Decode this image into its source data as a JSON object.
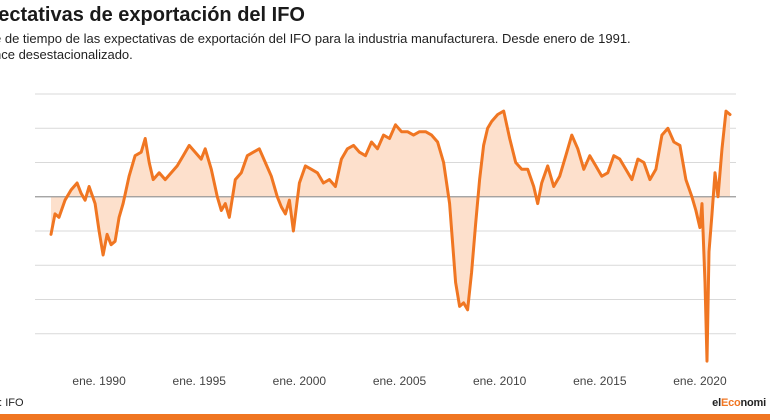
{
  "header": {
    "title": "pectativas de exportación del IFO",
    "subtitle_line1": "e de tiempo de las expectativas de exportación del IFO para la industria manufacturera. Desde enero de 1991.",
    "subtitle_line2": "nce desestacionalizado."
  },
  "footer": {
    "source": "e: IFO",
    "logo_part1": "el",
    "logo_part2": "Eco",
    "logo_part3": "nomi"
  },
  "colors": {
    "line": "#f07622",
    "fill": "#fde0cc",
    "grid": "#d9d9d9",
    "baseline": "#999999",
    "bar": "#f07622"
  },
  "chart_data": {
    "type": "area",
    "title": "pectativas de exportación del IFO",
    "xlabel": "",
    "ylabel": "",
    "xlim": [
      1986.8,
      2021.8
    ],
    "ylim": [
      -50,
      30
    ],
    "baseline": 0,
    "grid": true,
    "x_ticks": [
      1990,
      1995,
      2000,
      2005,
      2010,
      2015,
      2020
    ],
    "x_tick_labels": [
      "ene. 1990",
      "ene. 1995",
      "ene. 2000",
      "ene. 2005",
      "ene. 2010",
      "ene. 2015",
      "ene. 2020"
    ],
    "y_tick_labels": [],
    "series": [
      {
        "name": "Expectativas de exportación",
        "x": [
          1987.6,
          1987.8,
          1988.0,
          1988.3,
          1988.6,
          1988.9,
          1989.1,
          1989.3,
          1989.5,
          1989.8,
          1990.0,
          1990.2,
          1990.4,
          1990.6,
          1990.8,
          1991.0,
          1991.2,
          1991.5,
          1991.8,
          1992.1,
          1992.3,
          1992.5,
          1992.7,
          1993.0,
          1993.3,
          1993.6,
          1993.9,
          1994.2,
          1994.5,
          1994.8,
          1995.1,
          1995.3,
          1995.6,
          1995.9,
          1996.1,
          1996.3,
          1996.5,
          1996.8,
          1997.1,
          1997.4,
          1997.7,
          1998.0,
          1998.3,
          1998.6,
          1998.9,
          1999.1,
          1999.3,
          1999.5,
          1999.7,
          2000.0,
          2000.3,
          2000.6,
          2000.9,
          2001.2,
          2001.5,
          2001.8,
          2002.1,
          2002.4,
          2002.7,
          2003.0,
          2003.3,
          2003.6,
          2003.9,
          2004.2,
          2004.5,
          2004.8,
          2005.1,
          2005.4,
          2005.7,
          2006.0,
          2006.3,
          2006.6,
          2006.9,
          2007.2,
          2007.5,
          2007.8,
          2008.0,
          2008.2,
          2008.4,
          2008.6,
          2008.8,
          2009.0,
          2009.2,
          2009.4,
          2009.6,
          2009.9,
          2010.2,
          2010.5,
          2010.8,
          2011.1,
          2011.4,
          2011.7,
          2011.9,
          2012.1,
          2012.4,
          2012.7,
          2013.0,
          2013.3,
          2013.6,
          2013.9,
          2014.2,
          2014.5,
          2014.8,
          2015.1,
          2015.4,
          2015.7,
          2016.0,
          2016.3,
          2016.6,
          2016.9,
          2017.2,
          2017.5,
          2017.8,
          2018.1,
          2018.4,
          2018.7,
          2019.0,
          2019.3,
          2019.6,
          2019.8,
          2020.0,
          2020.1,
          2020.25,
          2020.35,
          2020.45,
          2020.6,
          2020.75,
          2020.9,
          2021.1,
          2021.3,
          2021.5
        ],
        "y": [
          -11,
          -5,
          -6,
          -1,
          2,
          4,
          1,
          -1,
          3,
          -2,
          -10,
          -17,
          -11,
          -14,
          -13,
          -6,
          -2,
          6,
          12,
          13,
          17,
          10,
          5,
          7,
          5,
          7,
          9,
          12,
          15,
          13,
          11,
          14,
          8,
          0,
          -4,
          -2,
          -6,
          5,
          7,
          12,
          13,
          14,
          10,
          6,
          0,
          -3,
          -5,
          -1,
          -10,
          4,
          9,
          8,
          7,
          4,
          5,
          3,
          11,
          14,
          15,
          13,
          12,
          16,
          14,
          18,
          17,
          21,
          19,
          19,
          18,
          19,
          19,
          18,
          16,
          10,
          -2,
          -25,
          -32,
          -31,
          -33,
          -22,
          -8,
          5,
          15,
          20,
          22,
          24,
          25,
          17,
          10,
          8,
          8,
          3,
          -2,
          4,
          9,
          3,
          6,
          12,
          18,
          14,
          8,
          12,
          9,
          6,
          7,
          12,
          11,
          8,
          5,
          11,
          10,
          5,
          8,
          18,
          20,
          16,
          15,
          5,
          0,
          -4,
          -9,
          -2,
          -25,
          -48,
          -16,
          -5,
          7,
          0,
          14,
          25,
          24
        ]
      }
    ]
  }
}
